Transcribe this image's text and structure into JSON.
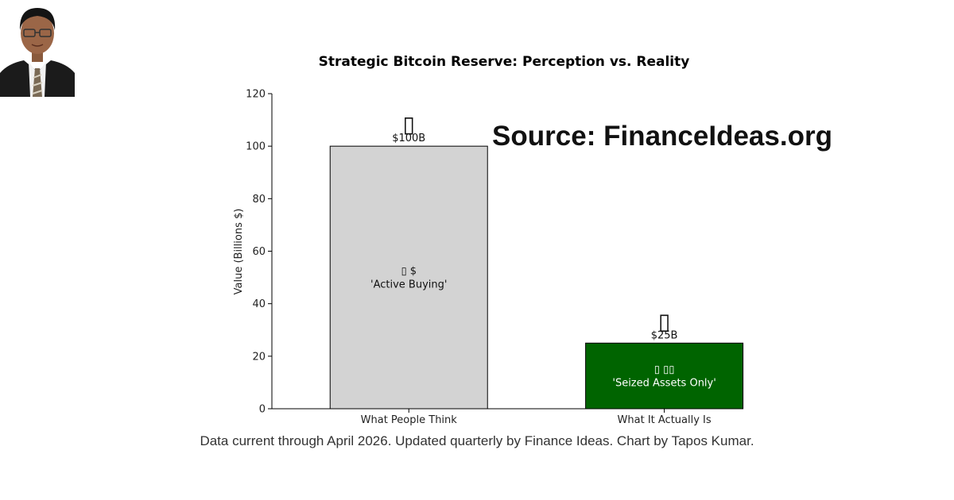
{
  "colors": {
    "bar_perception": "#d3d3d3",
    "bar_reality": "#006400",
    "text_on_light": "#111111",
    "text_on_dark": "#ffffff"
  },
  "chart_data": {
    "type": "bar",
    "title": "Strategic Bitcoin Reserve: Perception vs. Reality",
    "xlabel": "",
    "ylabel": "Value (Billions $)",
    "ylim": [
      0,
      120
    ],
    "yticks": [
      0,
      20,
      40,
      60,
      80,
      100,
      120
    ],
    "categories": [
      "What People Think",
      "What It Actually Is"
    ],
    "values": [
      100,
      25
    ],
    "value_labels": [
      "$100B",
      "$25B"
    ],
    "bar_symbols": [
      "▯",
      "▯"
    ],
    "inner_labels": [
      {
        "line1": "▯ $",
        "line2": "'Active Buying'"
      },
      {
        "line1": "▯ ▯▯",
        "line2": "'Seized Assets Only'"
      }
    ],
    "bar_colors": [
      "#d3d3d3",
      "#006400"
    ],
    "grid": false,
    "legend": "none"
  },
  "watermark": "Source: FinanceIdeas.org",
  "footnote": "Data current through April 2026. Updated quarterly by Finance Ideas. Chart by Tapos Kumar."
}
